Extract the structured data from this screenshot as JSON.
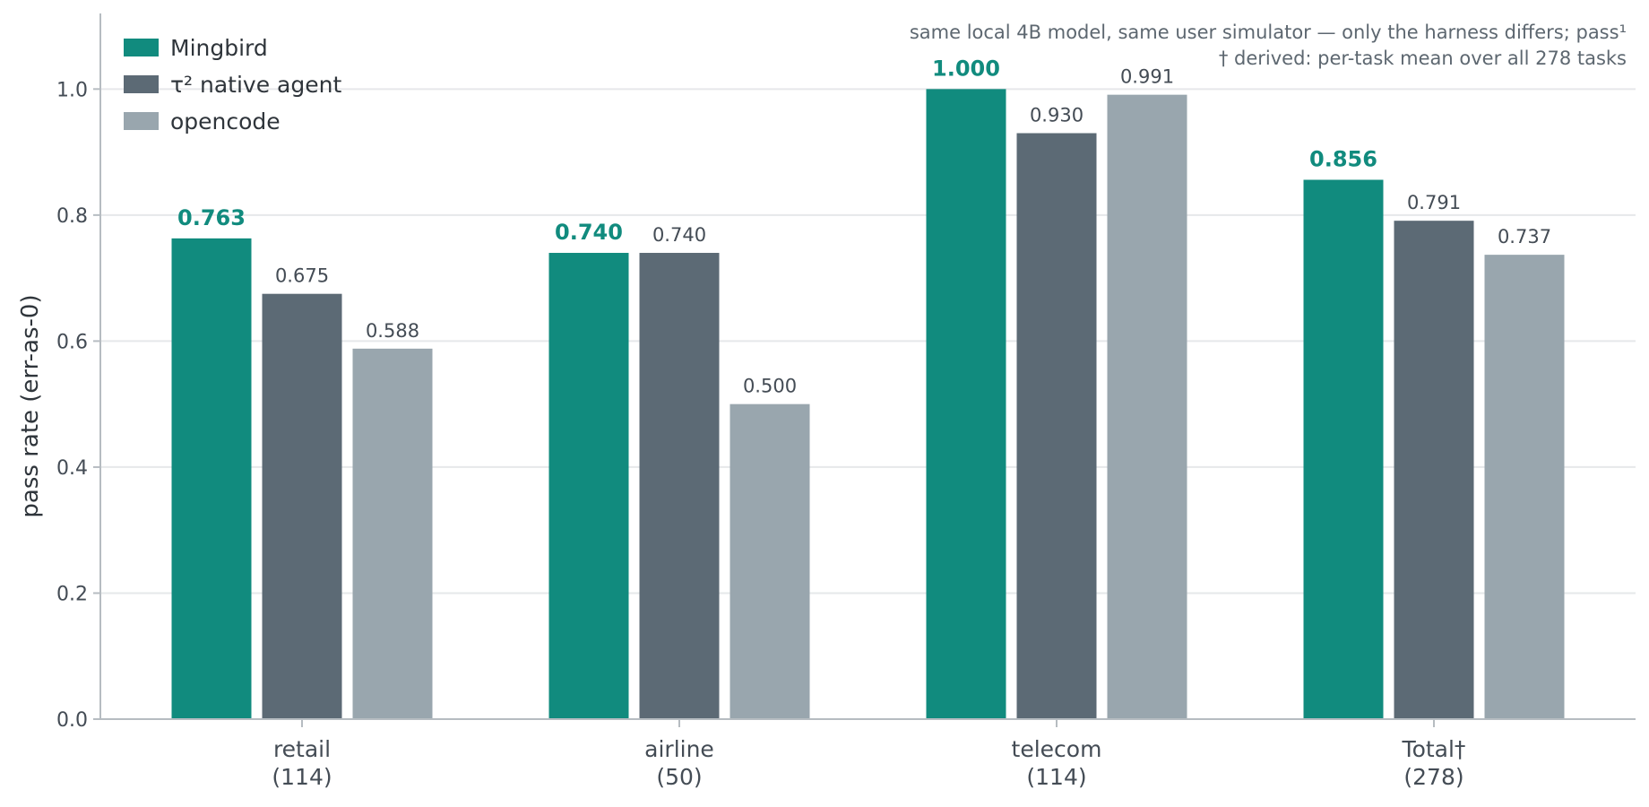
{
  "chart_data": {
    "type": "bar",
    "ylabel": "pass rate (err-as-0)",
    "ylim": [
      0,
      1.12
    ],
    "yticks": [
      "0.0",
      "0.2",
      "0.4",
      "0.6",
      "0.8",
      "1.0"
    ],
    "grid": "horizontal",
    "legend_position": "top-left",
    "categories": [
      {
        "name": "retail",
        "count": "(114)"
      },
      {
        "name": "airline",
        "count": "(50)"
      },
      {
        "name": "telecom",
        "count": "(114)"
      },
      {
        "name": "Total†",
        "count": "(278)"
      }
    ],
    "series": [
      {
        "name": "Mingbird",
        "color": "#118b7e",
        "highlight": true,
        "values": [
          0.763,
          0.74,
          1.0,
          0.856
        ],
        "labels": [
          "0.763",
          "0.740",
          "1.000",
          "0.856"
        ]
      },
      {
        "name": "τ² native agent",
        "color": "#5c6a75",
        "highlight": false,
        "values": [
          0.675,
          0.74,
          0.93,
          0.791
        ],
        "labels": [
          "0.675",
          "0.740",
          "0.930",
          "0.791"
        ]
      },
      {
        "name": "opencode",
        "color": "#99a6ae",
        "highlight": false,
        "values": [
          0.588,
          0.5,
          0.991,
          0.737
        ],
        "labels": [
          "0.588",
          "0.500",
          "0.991",
          "0.737"
        ]
      }
    ],
    "annotations": [
      "same local 4B model, same user simulator — only the harness differs; pass¹",
      "† derived: per-task mean over all 278 tasks"
    ]
  }
}
